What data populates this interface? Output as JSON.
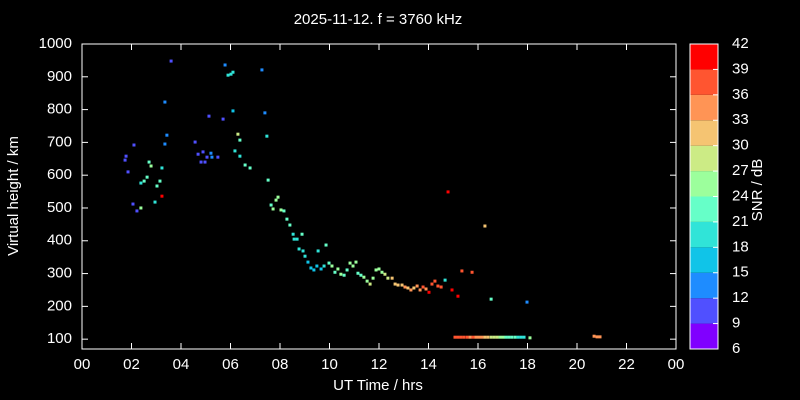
{
  "chart_data": {
    "type": "scatter",
    "title": "2025-11-12. f = 3760 kHz",
    "x_label": "UT Time / hrs",
    "y_label": "Virtual height / km",
    "xlim": [
      0,
      24
    ],
    "xticks": [
      {
        "value": 0,
        "label": "00"
      },
      {
        "value": 2,
        "label": "02"
      },
      {
        "value": 4,
        "label": "04"
      },
      {
        "value": 6,
        "label": "06"
      },
      {
        "value": 8,
        "label": "08"
      },
      10,
      12,
      14,
      16,
      18,
      20,
      22,
      {
        "value": 24,
        "label": "00"
      }
    ],
    "ylim": [
      70,
      1000
    ],
    "yticks": [
      100,
      200,
      300,
      400,
      500,
      600,
      700,
      800,
      900,
      1000
    ],
    "colorbar": {
      "label": "SNR / dB",
      "lim": [
        6,
        42
      ],
      "ticks": [
        6,
        9,
        12,
        15,
        18,
        21,
        24,
        27,
        30,
        33,
        36,
        39,
        42
      ],
      "colors": [
        "#8000ff",
        "#5050ff",
        "#1e8cff",
        "#10c4e8",
        "#30e4d8",
        "#66ffc8",
        "#9cff9c",
        "#cceb85",
        "#f5c472",
        "#ff9455",
        "#ff5530",
        "#ff0000"
      ]
    },
    "series": [
      {
        "x": [
          1.74,
          1.78,
          1.86,
          2.1,
          2.06,
          2.22,
          2.38,
          2.38,
          2.51,
          2.63,
          2.71,
          2.79,
          2.95,
          3.03,
          3.15,
          3.23,
          3.23,
          3.35,
          3.35,
          3.43,
          3.6,
          4.57,
          4.69,
          4.81,
          4.89,
          4.97,
          5.05,
          5.13,
          5.21,
          5.25,
          5.49,
          5.7,
          5.78,
          5.9,
          6.02,
          6.1,
          6.1,
          6.18,
          6.3,
          6.38,
          6.38,
          6.59,
          6.79,
          7.27,
          7.39,
          7.47,
          7.52,
          7.64,
          7.72,
          7.84,
          7.92,
          8.04,
          8.16,
          8.28,
          8.4,
          8.53,
          8.57,
          8.69,
          8.77,
          8.89,
          8.93,
          9.01,
          9.13,
          9.25,
          9.37,
          9.49,
          9.54,
          9.66,
          9.78,
          9.86,
          9.98,
          10.1,
          10.22,
          10.34,
          10.46,
          10.59,
          10.71,
          10.83,
          10.95,
          11.07,
          11.15,
          11.27,
          11.39,
          11.52,
          11.64,
          11.76,
          11.88,
          12.0,
          12.12,
          12.24,
          12.36,
          12.53,
          12.65,
          12.77,
          12.93,
          13.05,
          13.17,
          13.29,
          13.41,
          13.54,
          13.66,
          13.78,
          13.9,
          14.02,
          14.14,
          14.26,
          14.38,
          14.51,
          14.67,
          14.79,
          14.95,
          15.19,
          15.35,
          15.76,
          16.28,
          16.53,
          17.98,
          15.07,
          15.19,
          15.31,
          15.43,
          15.56,
          15.68,
          15.8,
          15.92,
          16.04,
          16.16,
          16.28,
          16.4,
          16.53,
          16.65,
          16.77,
          16.89,
          17.01,
          17.13,
          17.25,
          17.37,
          17.5,
          17.62,
          17.74,
          17.86,
          18.1,
          20.69,
          20.81,
          20.93
        ],
        "values": [
          646,
          658,
          610,
          692,
          512,
          491,
          500,
          576,
          582,
          594,
          640,
          628,
          518,
          567,
          582,
          622,
          536,
          695,
          823,
          722,
          948,
          701,
          664,
          640,
          671,
          640,
          655,
          780,
          667,
          655,
          655,
          771,
          936,
          905,
          908,
          914,
          796,
          674,
          725,
          707,
          658,
          631,
          622,
          921,
          790,
          719,
          585,
          509,
          497,
          524,
          533,
          494,
          491,
          466,
          448,
          420,
          405,
          405,
          375,
          420,
          369,
          353,
          335,
          317,
          311,
          323,
          369,
          314,
          323,
          387,
          332,
          323,
          304,
          314,
          298,
          295,
          311,
          332,
          323,
          335,
          301,
          295,
          289,
          277,
          268,
          286,
          311,
          314,
          304,
          298,
          286,
          286,
          268,
          265,
          265,
          259,
          256,
          250,
          256,
          262,
          250,
          259,
          253,
          243,
          268,
          277,
          262,
          259,
          280,
          549,
          250,
          231,
          308,
          304,
          445,
          222,
          213,
          106,
          106,
          106,
          106,
          106,
          106,
          106,
          106,
          106,
          106,
          106,
          106,
          106,
          106,
          106,
          106,
          106,
          106,
          106,
          106,
          106,
          106,
          106,
          106,
          104,
          109,
          107,
          107
        ],
        "snr": [
          10,
          10,
          10,
          10,
          11,
          11,
          24,
          20,
          22,
          23,
          21,
          24,
          20,
          22,
          21,
          20,
          39,
          12,
          12,
          13,
          11,
          9,
          9,
          10,
          10,
          10,
          11,
          10,
          12,
          13,
          10,
          11,
          13,
          19,
          19,
          20,
          17,
          19,
          28,
          22,
          20,
          22,
          22,
          12,
          14,
          19,
          21,
          23,
          24,
          25,
          25,
          24,
          22,
          23,
          21,
          20,
          19,
          20,
          19,
          21,
          20,
          18,
          17,
          16,
          16,
          17,
          20,
          17,
          18,
          22,
          21,
          24,
          22,
          26,
          24,
          23,
          22,
          26,
          24,
          25,
          23,
          22,
          25,
          24,
          27,
          26,
          24,
          25,
          26,
          28,
          29,
          30,
          31,
          32,
          30,
          33,
          32,
          34,
          31,
          33,
          35,
          37,
          34,
          39,
          38,
          37,
          36,
          37,
          19,
          39,
          39,
          40,
          38,
          37,
          31,
          22,
          13,
          38,
          38,
          37,
          38,
          37,
          35,
          36,
          35,
          34,
          33,
          32,
          30,
          29,
          28,
          27,
          26,
          25,
          23,
          22,
          21,
          22,
          20,
          19,
          18,
          24,
          34,
          35,
          34
        ]
      }
    ]
  }
}
